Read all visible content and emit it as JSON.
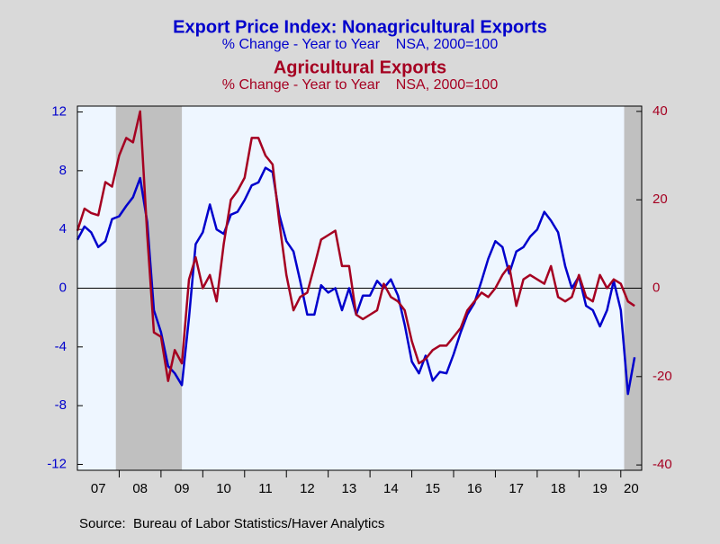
{
  "chart_data": {
    "type": "line",
    "title": "Export Price Index: Nonagricultural Exports",
    "subtitle": "% Change - Year to Year    NSA, 2000=100",
    "title2": "Agricultural Exports",
    "subtitle2": "% Change - Year to Year    NSA, 2000=100",
    "source": "Source:  Bureau of Labor Statistics/Haver Analytics",
    "x": [
      2007.0,
      2007.17,
      2007.33,
      2007.5,
      2007.67,
      2007.83,
      2008.0,
      2008.17,
      2008.33,
      2008.5,
      2008.67,
      2008.83,
      2009.0,
      2009.17,
      2009.33,
      2009.5,
      2009.67,
      2009.83,
      2010.0,
      2010.17,
      2010.33,
      2010.5,
      2010.67,
      2010.83,
      2011.0,
      2011.17,
      2011.33,
      2011.5,
      2011.67,
      2011.83,
      2012.0,
      2012.17,
      2012.33,
      2012.5,
      2012.67,
      2012.83,
      2013.0,
      2013.17,
      2013.33,
      2013.5,
      2013.67,
      2013.83,
      2014.0,
      2014.17,
      2014.33,
      2014.5,
      2014.67,
      2014.83,
      2015.0,
      2015.17,
      2015.33,
      2015.5,
      2015.67,
      2015.83,
      2016.0,
      2016.17,
      2016.33,
      2016.5,
      2016.67,
      2016.83,
      2017.0,
      2017.17,
      2017.33,
      2017.5,
      2017.67,
      2017.83,
      2018.0,
      2018.17,
      2018.33,
      2018.5,
      2018.67,
      2018.83,
      2019.0,
      2019.17,
      2019.33,
      2019.5,
      2019.67,
      2019.83,
      2020.0,
      2020.17,
      2020.33
    ],
    "series": [
      {
        "name": "Nonagricultural Exports",
        "color": "#0000cc",
        "axis": "y",
        "values": [
          3.3,
          4.2,
          3.8,
          2.8,
          3.2,
          4.7,
          4.9,
          5.6,
          6.2,
          7.5,
          4.5,
          -1.5,
          -3,
          -5.3,
          -5.8,
          -6.6,
          -2,
          3,
          3.8,
          5.7,
          4.0,
          3.7,
          5.0,
          5.2,
          6,
          7,
          7.2,
          8.2,
          7.9,
          5,
          3.2,
          2.5,
          0.5,
          -1.8,
          -1.8,
          0.2,
          -0.3,
          0,
          -1.5,
          0,
          -1.8,
          -0.5,
          -0.5,
          0.5,
          0,
          0.6,
          -0.5,
          -2.5,
          -5,
          -5.8,
          -4.6,
          -6.3,
          -5.7,
          -5.8,
          -4.5,
          -3,
          -1.8,
          -1,
          0.5,
          2,
          3.2,
          2.8,
          1.0,
          2.5,
          2.8,
          3.5,
          4,
          5.2,
          4.6,
          3.8,
          1.5,
          0,
          0.8,
          -1.2,
          -1.5,
          -2.6,
          -1.5,
          0.5,
          -1.5,
          -7.2,
          -4.7
        ]
      },
      {
        "name": "Agricultural Exports",
        "color": "#a50021",
        "axis": "y2",
        "values": [
          13,
          18,
          17,
          16.5,
          24,
          23,
          30,
          34,
          33,
          40,
          12,
          -10,
          -11,
          -21,
          -14,
          -17,
          2,
          7,
          0,
          3,
          -3,
          10,
          20,
          22,
          25,
          34,
          34,
          30,
          28,
          15,
          3,
          -5,
          -2,
          -1,
          5,
          11,
          12,
          13,
          5,
          5,
          -6,
          -7,
          -6,
          -5,
          1,
          -2,
          -3,
          -5,
          -12,
          -17,
          -16,
          -14,
          -13,
          -13,
          -11,
          -9,
          -5,
          -3,
          -1,
          -2,
          0,
          3,
          5,
          -4,
          2,
          3,
          2,
          1,
          5,
          -2,
          -3,
          -2,
          3,
          -2,
          -3,
          3,
          0,
          2,
          1,
          -3,
          -4
        ]
      }
    ],
    "xlim": [
      2007,
      2020.5
    ],
    "xticks": [
      {
        "value": 2007.5,
        "label": "07"
      },
      {
        "value": 2008.5,
        "label": "08"
      },
      {
        "value": 2009.5,
        "label": "09"
      },
      {
        "value": 2010.5,
        "label": "10"
      },
      {
        "value": 2011.5,
        "label": "11"
      },
      {
        "value": 2012.5,
        "label": "12"
      },
      {
        "value": 2013.5,
        "label": "13"
      },
      {
        "value": 2014.5,
        "label": "14"
      },
      {
        "value": 2015.5,
        "label": "15"
      },
      {
        "value": 2016.5,
        "label": "16"
      },
      {
        "value": 2017.5,
        "label": "17"
      },
      {
        "value": 2018.5,
        "label": "18"
      },
      {
        "value": 2019.5,
        "label": "19"
      },
      {
        "value": 2020.25,
        "label": "20"
      }
    ],
    "year_boundaries": [
      2008,
      2009,
      2010,
      2011,
      2012,
      2013,
      2014,
      2015,
      2016,
      2017,
      2018,
      2019,
      2020
    ],
    "ylim": [
      -12.4,
      12.4
    ],
    "yticks": [
      -12,
      -8,
      -4,
      0,
      4,
      8,
      12
    ],
    "y2lim": [
      -41.2,
      41.2
    ],
    "y2ticks": [
      -40,
      -20,
      0,
      20,
      40
    ],
    "recessions": [
      [
        2007.92,
        2009.5
      ],
      [
        2020.08,
        2020.5
      ]
    ],
    "recession_color": "#c0c0c0"
  }
}
